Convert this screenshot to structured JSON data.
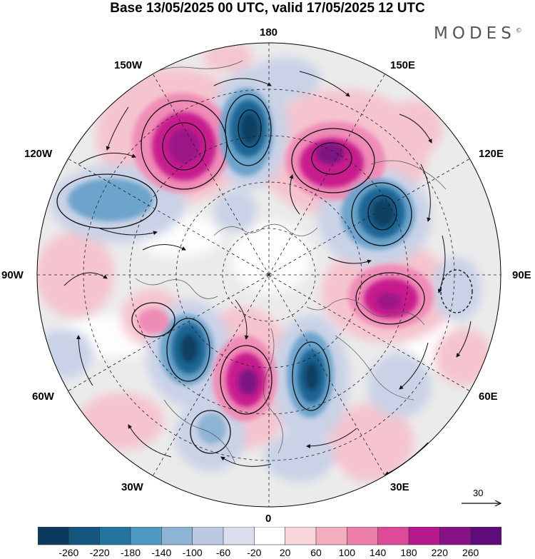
{
  "title": "Base 13/05/2025 00 UTC, valid 17/05/2025 12 UTC",
  "logo_text": "MODES",
  "logo_mark": "©",
  "longitude_labels": {
    "top": "180",
    "top_right": "150E",
    "upper_right": "120E",
    "right": "90E",
    "lower_right": "60E",
    "bottom_right": "30E",
    "bottom": "0",
    "bottom_left": "30W",
    "lower_left": "60W",
    "left": "90W",
    "upper_left": "120W",
    "top_left": "150W"
  },
  "reference_vector": {
    "label": "30"
  },
  "colorbar": {
    "labels": [
      "-260",
      "-220",
      "-180",
      "-140",
      "-100",
      "-60",
      "-20",
      "20",
      "60",
      "100",
      "140",
      "180",
      "220",
      "260"
    ],
    "colors": [
      "#0c3a5c",
      "#15567e",
      "#22759f",
      "#4d9bc2",
      "#8db4d4",
      "#bcc9e2",
      "#dcdeee",
      "#ffffff",
      "#f9d6d9",
      "#f3aebe",
      "#ec7eaa",
      "#dd4a98",
      "#b5198c",
      "#871287",
      "#5e0c79"
    ]
  },
  "map_colors": {
    "background_gray": "#ebebeb",
    "positive_light": "#f5c4ce",
    "positive_mid": "#ef8cb6",
    "positive_strong": "#c71c8e",
    "positive_core": "#7d1482",
    "negative_light": "#c9d2e6",
    "negative_mid": "#6da4cc",
    "negative_strong": "#1f6593",
    "negative_core": "#0f3f62"
  }
}
